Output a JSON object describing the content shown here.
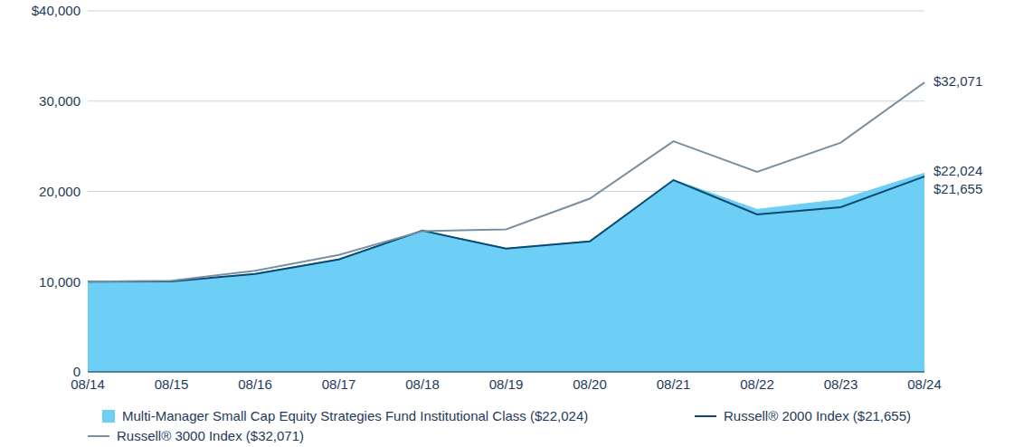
{
  "chart_data": {
    "type": "line",
    "categories": [
      "08/14",
      "08/15",
      "08/16",
      "08/17",
      "08/18",
      "08/19",
      "08/20",
      "08/21",
      "08/22",
      "08/23",
      "08/24"
    ],
    "ylim": [
      0,
      40000
    ],
    "yticks": [
      0,
      {
        "value": 10000,
        "label": "10,000"
      },
      {
        "value": 20000,
        "label": "20,000"
      },
      {
        "value": 30000,
        "label": "30,000"
      },
      {
        "value": 40000,
        "label": "$40,000"
      }
    ],
    "grid": true,
    "legend": "bottom",
    "series": [
      {
        "name": "Multi-Manager Small Cap Equity Strategies Fund Institutional Class ($22,024)",
        "type": "area",
        "color": "#6dcff6",
        "values": [
          10000,
          10050,
          10900,
          12500,
          15700,
          13700,
          14500,
          21300,
          18000,
          19100,
          22024
        ],
        "value_labels": [
          null,
          null,
          null,
          null,
          null,
          null,
          null,
          null,
          null,
          null,
          "$22,024"
        ]
      },
      {
        "name": "Russell® 2000 Index ($21,655)",
        "type": "line",
        "color": "#0b4a6f",
        "values": [
          10000,
          10030,
          10850,
          12450,
          15650,
          13650,
          14450,
          21250,
          17450,
          18250,
          21655
        ],
        "value_labels": [
          null,
          null,
          null,
          null,
          null,
          null,
          null,
          null,
          null,
          null,
          "$21,655"
        ]
      },
      {
        "name": "Russell® 3000 Index ($32,071)",
        "type": "line",
        "color": "#7a8fa3",
        "values": [
          10000,
          10100,
          11200,
          12950,
          15600,
          15800,
          19200,
          25550,
          22150,
          25400,
          32071
        ],
        "value_labels": [
          null,
          null,
          null,
          null,
          null,
          null,
          null,
          null,
          null,
          null,
          "$32,071"
        ]
      }
    ]
  }
}
